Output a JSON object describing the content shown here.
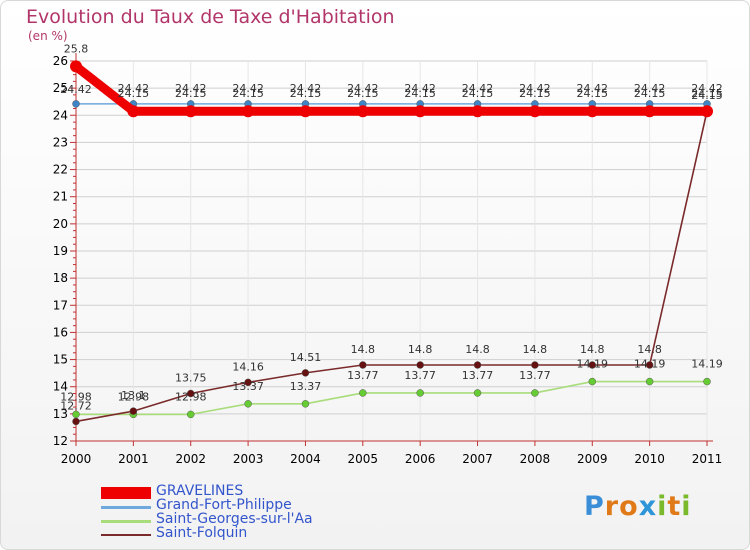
{
  "header": {
    "title": "Evolution du Taux de Taxe d'Habitation",
    "unit": "(en %)"
  },
  "brand": {
    "name": "Proxiti",
    "letters": [
      "P",
      "r",
      "o",
      "x",
      "i",
      "t",
      "i"
    ],
    "colors": [
      "#3a8ed8",
      "#e07a18",
      "#e07a18",
      "#2e96d8",
      "#7ab82c",
      "#e07a18",
      "#7ab82c"
    ]
  },
  "chart_data": {
    "type": "line",
    "title": "Evolution du Taux de Taxe d'Habitation",
    "ylabel": "(en %)",
    "xlabel": "",
    "ylim": [
      12,
      26
    ],
    "yticks": [
      12,
      13,
      14,
      15,
      16,
      17,
      18,
      19,
      20,
      21,
      22,
      23,
      24,
      25,
      26
    ],
    "categories": [
      "2000",
      "2001",
      "2002",
      "2003",
      "2004",
      "2005",
      "2006",
      "2007",
      "2008",
      "2009",
      "2010",
      "2011"
    ],
    "series": [
      {
        "name": "GRAVELINES",
        "color": "#ee0000",
        "point_color": "#b50000",
        "values": [
          25.8,
          24.15,
          24.15,
          24.15,
          24.15,
          24.15,
          24.15,
          24.15,
          24.15,
          24.15,
          24.15,
          24.15
        ],
        "labels": [
          "25.8",
          "24.15",
          "24.15",
          "24.15",
          "24.15",
          "24.15",
          "24.15",
          "24.15",
          "24.15",
          "24.15",
          "24.15",
          "24.15"
        ]
      },
      {
        "name": "Grand-Fort-Philippe",
        "color": "#6fa8dc",
        "point_color": "#3d85c6",
        "values": [
          24.42,
          24.42,
          24.42,
          24.42,
          24.42,
          24.42,
          24.42,
          24.42,
          24.42,
          24.42,
          24.42,
          24.42
        ],
        "labels": [
          "24.42",
          "24.42",
          "24.42",
          "24.42",
          "24.42",
          "24.42",
          "24.42",
          "24.42",
          "24.42",
          "24.42",
          "24.42",
          "24.42"
        ]
      },
      {
        "name": "Saint-Georges-sur-l'Aa",
        "color": "#a9dc7a",
        "point_color": "#66cc33",
        "values": [
          12.98,
          12.98,
          12.98,
          13.37,
          13.37,
          13.77,
          13.77,
          13.77,
          13.77,
          14.19,
          14.19,
          14.19
        ],
        "labels": [
          "12.98",
          "12.98",
          "12.98",
          "13.37",
          "13.37",
          "13.77",
          "13.77",
          "13.77",
          "13.77",
          "14.19",
          "14.19",
          "14.19"
        ]
      },
      {
        "name": "Saint-Folquin",
        "color": "#7a2a2a",
        "point_color": "#661111",
        "values": [
          12.72,
          13.1,
          13.75,
          14.16,
          14.51,
          14.8,
          14.8,
          14.8,
          14.8,
          14.8,
          14.8,
          24.15
        ],
        "labels": [
          "12.72",
          "13.1",
          "13.75",
          "14.16",
          "14.51",
          "14.8",
          "14.8",
          "14.8",
          "14.8",
          "14.8",
          "14.8",
          "24.15"
        ]
      }
    ]
  }
}
